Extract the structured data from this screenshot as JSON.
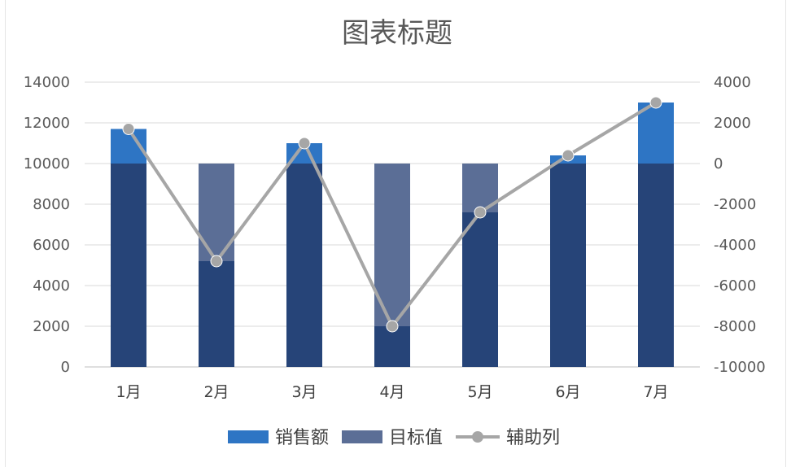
{
  "chart_data": {
    "type": "bar",
    "title": "图表标题",
    "categories": [
      "1月",
      "2月",
      "3月",
      "4月",
      "5月",
      "6月",
      "7月"
    ],
    "series": [
      {
        "name": "销售额",
        "kind": "bar",
        "axis": "left",
        "color": "#2e75c4",
        "values": [
          11700,
          5200,
          11000,
          2000,
          7600,
          10400,
          13000
        ]
      },
      {
        "name": "目标值",
        "kind": "bar",
        "axis": "left",
        "color": "#5b6e96",
        "values": [
          10000,
          10000,
          10000,
          10000,
          10000,
          10000,
          10000
        ]
      },
      {
        "name": "辅助列",
        "kind": "line",
        "axis": "right",
        "color": "#a6a6a6",
        "values": [
          1700,
          -4800,
          1000,
          -8000,
          -2400,
          400,
          3000
        ]
      }
    ],
    "overlap_color": "#264478",
    "y_left": {
      "min": 0,
      "max": 14000,
      "step": 2000,
      "ticks": [
        "0",
        "2000",
        "4000",
        "6000",
        "8000",
        "10000",
        "12000",
        "14000"
      ]
    },
    "y_right": {
      "min": -10000,
      "max": 4000,
      "step": 2000,
      "ticks": [
        "-10000",
        "-8000",
        "-6000",
        "-4000",
        "-2000",
        "0",
        "2000",
        "4000"
      ]
    },
    "grid": true,
    "legend_position": "bottom"
  }
}
